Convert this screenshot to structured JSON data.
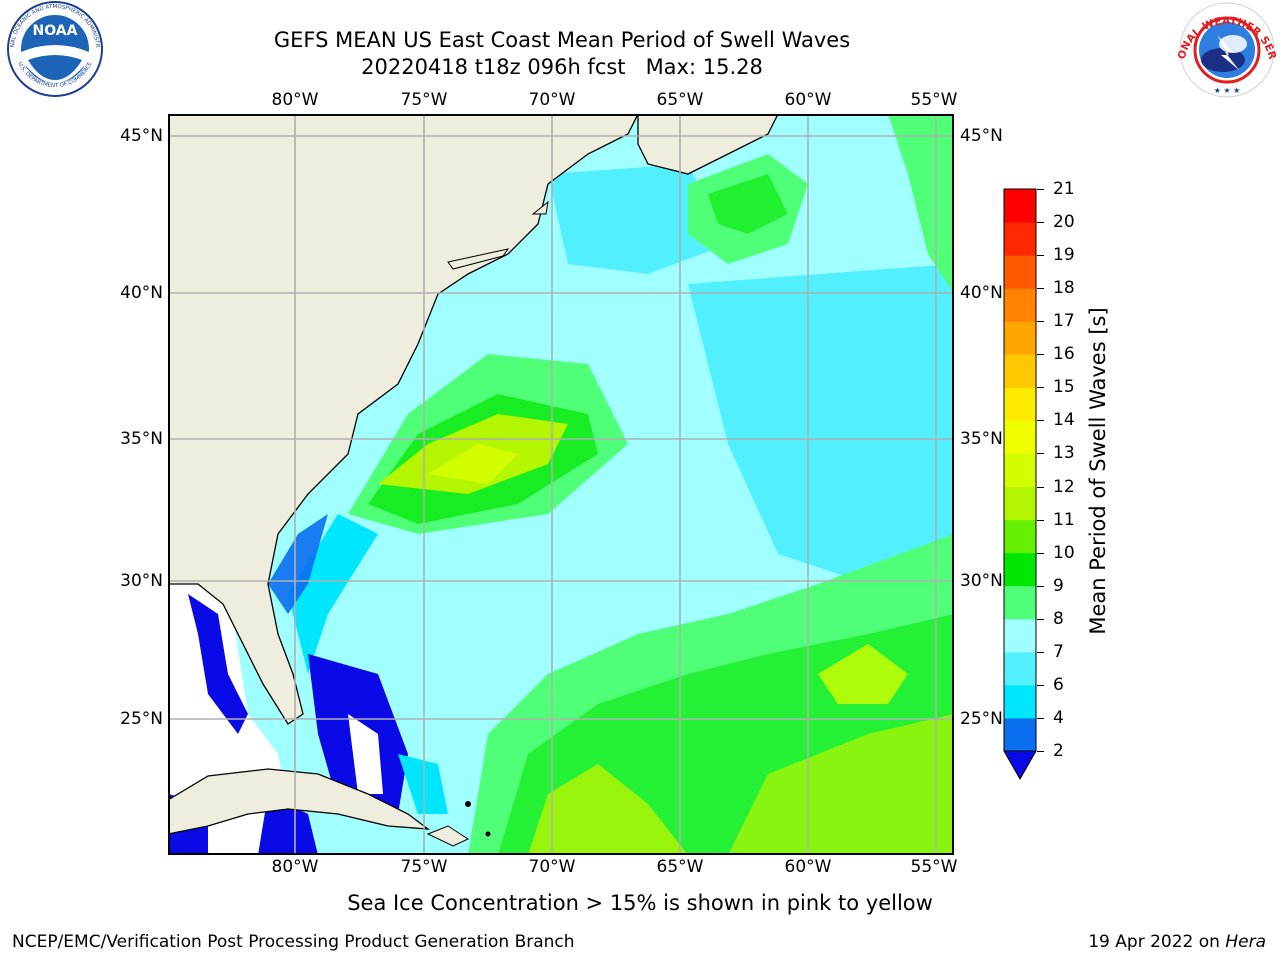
{
  "header": {
    "title_line1": "GEFS MEAN US East Coast Mean Period of Swell Waves",
    "title_line2": "20220418 t18z 096h fcst   Max: 15.28"
  },
  "logos": {
    "noara_name": "noaa-logo",
    "noaa_text": "NOAA",
    "noaa_ring_text": "NATIONAL OCEANIC AND ATMOSPHERIC ADMINISTRATION",
    "noaa_ring_text_bottom": "U.S. DEPARTMENT OF COMMERCE",
    "nws_ring_text": "NATIONAL WEATHER SERVICE"
  },
  "map": {
    "lon_labels": [
      "80°W",
      "75°W",
      "70°W",
      "65°W",
      "60°W",
      "55°W"
    ],
    "lat_labels": [
      "45°N",
      "40°N",
      "35°N",
      "30°N",
      "25°N"
    ],
    "colors": {
      "land": "#efedde",
      "grid": "#b0b0b0"
    }
  },
  "colorbar": {
    "label": "Mean Period of Swell Waves [s]",
    "ticks": [
      "2",
      "4",
      "6",
      "7",
      "8",
      "9",
      "10",
      "11",
      "12",
      "13",
      "14",
      "15",
      "16",
      "17",
      "18",
      "19",
      "20",
      "21"
    ],
    "colors": [
      "#0a0ae6",
      "#0a6ef0",
      "#00e6ff",
      "#52f0ff",
      "#a0ffff",
      "#50ff78",
      "#00e600",
      "#64f000",
      "#b4f500",
      "#d2ff00",
      "#f0ff00",
      "#ffeb00",
      "#ffc800",
      "#ffa500",
      "#ff8200",
      "#ff5a00",
      "#ff2800",
      "#ff0000"
    ]
  },
  "footer": {
    "note": "Sea Ice Concentration > 15% is shown in pink to yellow",
    "left": "NCEP/EMC/Verification Post Processing Product Generation Branch",
    "right_date": "19 Apr 2022 on",
    "right_host": "Hera"
  }
}
